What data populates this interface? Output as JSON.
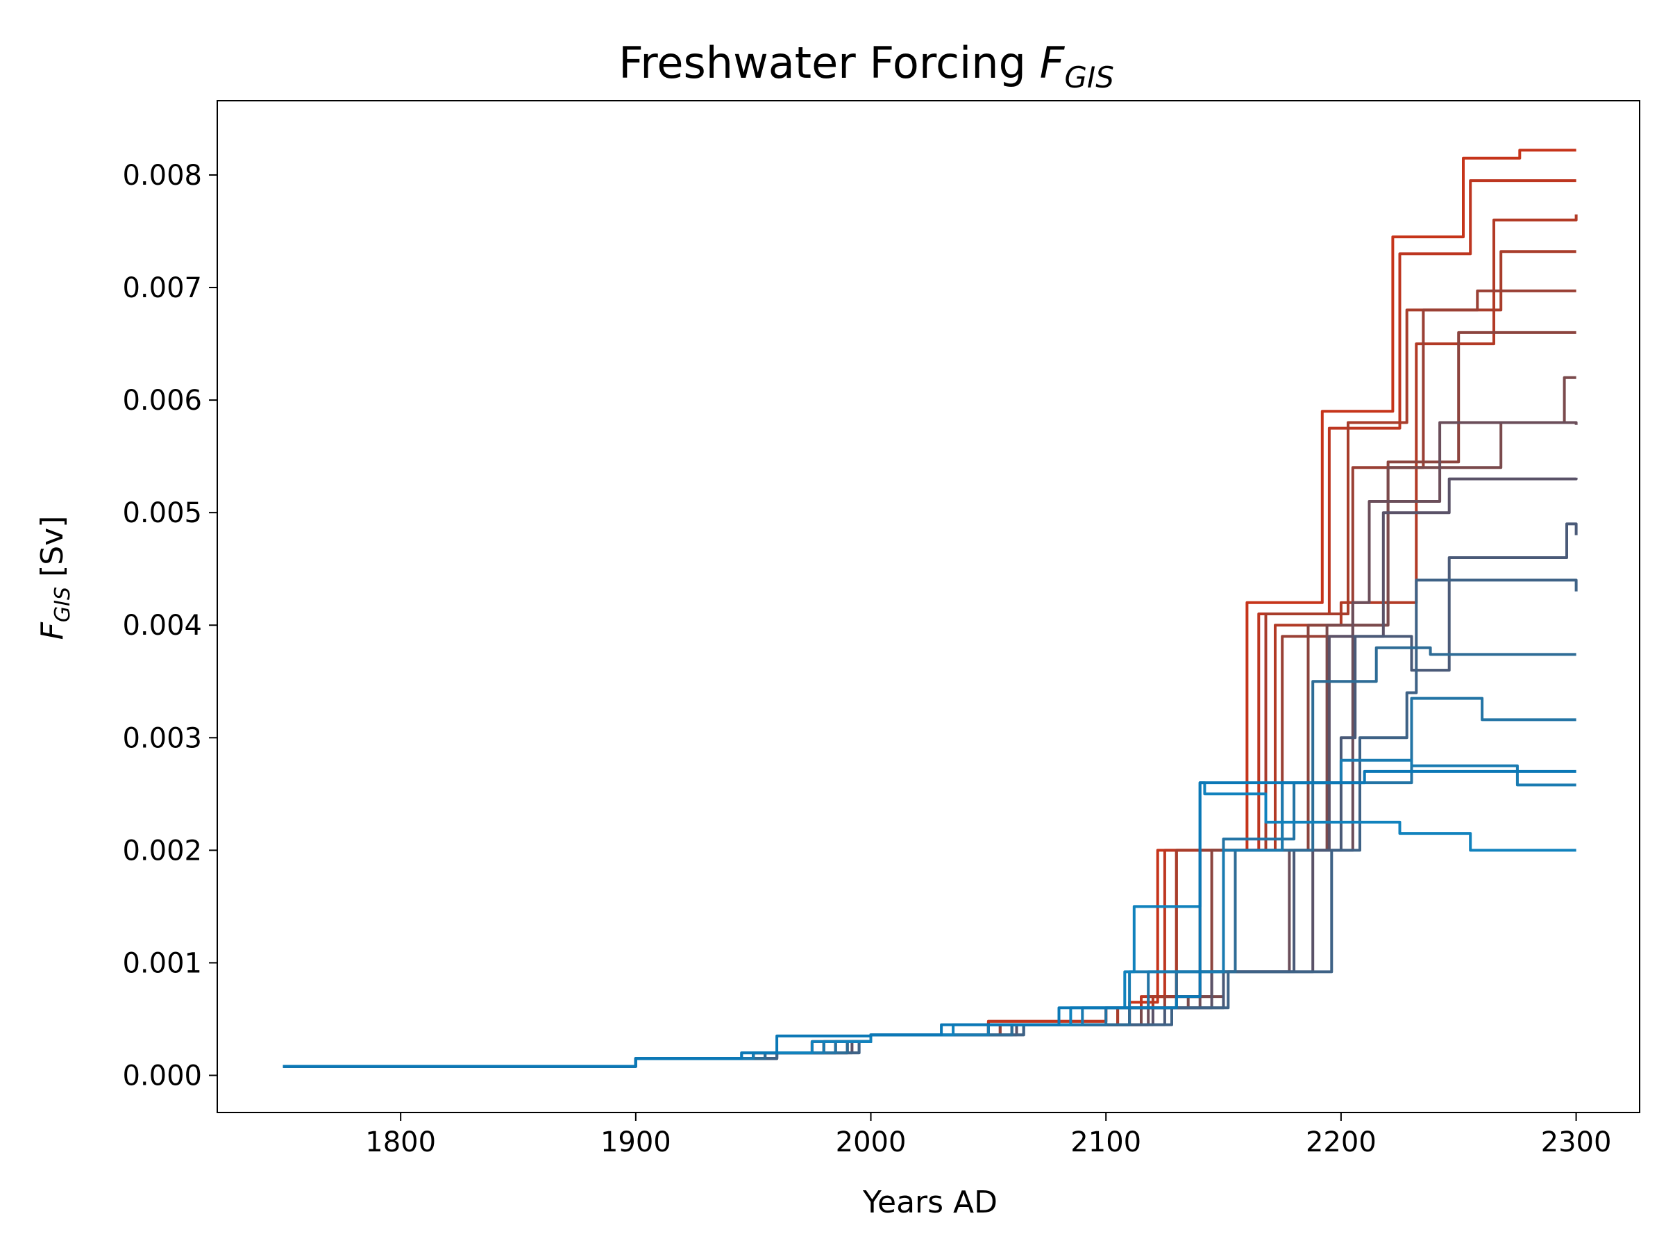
{
  "chart_data": {
    "type": "line",
    "title": {
      "main": "Freshwater Forcing ",
      "symbol": "F",
      "subscript": "GIS"
    },
    "xlabel": "Years AD",
    "ylabel": {
      "symbol": "F",
      "subscript": "GIS",
      "unit": " [Sv]"
    },
    "xlim": [
      1722,
      2327
    ],
    "ylim": [
      -0.00033,
      0.00866
    ],
    "xticks": [
      1800,
      1900,
      2000,
      2100,
      2200,
      2300
    ],
    "xtick_labels": [
      "1800",
      "1900",
      "2000",
      "2100",
      "2200",
      "2300"
    ],
    "yticks": [
      0.0,
      0.001,
      0.002,
      0.003,
      0.004,
      0.005,
      0.006,
      0.007,
      0.008
    ],
    "ytick_labels": [
      "0.000",
      "0.001",
      "0.002",
      "0.003",
      "0.004",
      "0.005",
      "0.006",
      "0.007",
      "0.008"
    ],
    "grid": false,
    "legend": "none",
    "series": [
      {
        "color": "#c6341a",
        "x": [
          1750,
          1900,
          1950,
          1975,
          2000,
          2050,
          2100,
          2110,
          2122,
          2124,
          2158,
          2160,
          2190,
          2192,
          2220,
          2222,
          2250,
          2252,
          2275,
          2276,
          2300
        ],
        "y": [
          8e-05,
          0.00015,
          0.0002,
          0.0003,
          0.00036,
          0.00048,
          0.0006,
          0.00065,
          0.002,
          0.002,
          0.002,
          0.0042,
          0.0042,
          0.0059,
          0.0059,
          0.00745,
          0.00745,
          0.00815,
          0.00815,
          0.00822,
          0.00822
        ]
      },
      {
        "color": "#bd3620",
        "x": [
          1750,
          1900,
          1950,
          1975,
          2000,
          2050,
          2100,
          2115,
          2125,
          2162,
          2165,
          2193,
          2195,
          2222,
          2225,
          2252,
          2255,
          2300
        ],
        "y": [
          8e-05,
          0.00015,
          0.0002,
          0.0003,
          0.00036,
          0.00048,
          0.0006,
          0.0007,
          0.002,
          0.002,
          0.0041,
          0.0041,
          0.00575,
          0.00575,
          0.0073,
          0.0073,
          0.00795,
          0.00795
        ]
      },
      {
        "color": "#b23a25",
        "x": [
          1750,
          1900,
          1950,
          1980,
          2000,
          2050,
          2105,
          2120,
          2130,
          2168,
          2172,
          2198,
          2200,
          2228,
          2232,
          2258,
          2265,
          2300
        ],
        "y": [
          8e-05,
          0.00015,
          0.0002,
          0.0003,
          0.00036,
          0.00045,
          0.0006,
          0.0007,
          0.002,
          0.002,
          0.004,
          0.004,
          0.0042,
          0.0042,
          0.0065,
          0.0065,
          0.0076,
          0.00765
        ]
      },
      {
        "color": "#a83d2b",
        "x": [
          1750,
          1900,
          1950,
          1980,
          2000,
          2050,
          2105,
          2118,
          2130,
          2165,
          2168,
          2200,
          2203,
          2225,
          2228,
          2262,
          2268,
          2300
        ],
        "y": [
          8e-05,
          0.00015,
          0.0002,
          0.0003,
          0.00036,
          0.00045,
          0.0006,
          0.0007,
          0.002,
          0.002,
          0.0041,
          0.0041,
          0.0058,
          0.0058,
          0.0068,
          0.0068,
          0.00732,
          0.00732
        ]
      },
      {
        "color": "#9a4035",
        "x": [
          1750,
          1900,
          1955,
          1985,
          2000,
          2055,
          2110,
          2125,
          2140,
          2170,
          2175,
          2200,
          2205,
          2230,
          2235,
          2252,
          2258,
          2300
        ],
        "y": [
          8e-05,
          0.00015,
          0.0002,
          0.0003,
          0.00036,
          0.00045,
          0.0006,
          0.0007,
          0.002,
          0.002,
          0.0039,
          0.0039,
          0.0054,
          0.0054,
          0.0068,
          0.0068,
          0.00697,
          0.00697
        ]
      },
      {
        "color": "#8c443e",
        "x": [
          1750,
          1900,
          1955,
          1985,
          2000,
          2055,
          2110,
          2130,
          2145,
          2180,
          2186,
          2215,
          2220,
          2240,
          2250,
          2300
        ],
        "y": [
          8e-05,
          0.00015,
          0.0002,
          0.0003,
          0.00036,
          0.00045,
          0.0006,
          0.0007,
          0.002,
          0.002,
          0.004,
          0.004,
          0.00545,
          0.00545,
          0.0066,
          0.0066
        ]
      },
      {
        "color": "#7a4a4c",
        "x": [
          1750,
          1900,
          1955,
          1990,
          2000,
          2060,
          2115,
          2135,
          2150,
          2188,
          2194,
          2215,
          2220,
          2260,
          2268,
          2295,
          2300
        ],
        "y": [
          8e-05,
          0.00015,
          0.0002,
          0.0003,
          0.00036,
          0.00045,
          0.0006,
          0.0007,
          0.002,
          0.002,
          0.004,
          0.004,
          0.0054,
          0.0054,
          0.0058,
          0.0062,
          0.0062
        ]
      },
      {
        "color": "#6b4e5a",
        "x": [
          1750,
          1900,
          1960,
          1990,
          2000,
          2060,
          2118,
          2140,
          2165,
          2178,
          2185,
          2205,
          2212,
          2232,
          2242,
          2255,
          2300
        ],
        "y": [
          8e-05,
          0.00015,
          0.0002,
          0.0003,
          0.00036,
          0.00045,
          0.0006,
          0.00092,
          0.00092,
          0.002,
          0.002,
          0.0042,
          0.0051,
          0.0051,
          0.0058,
          0.0058,
          0.00578
        ]
      },
      {
        "color": "#5a5268",
        "x": [
          1750,
          1900,
          1960,
          1992,
          2000,
          2062,
          2120,
          2145,
          2180,
          2188,
          2195,
          2212,
          2218,
          2240,
          2246,
          2300
        ],
        "y": [
          8e-05,
          0.00015,
          0.0002,
          0.0003,
          0.00036,
          0.00045,
          0.0006,
          0.00092,
          0.00092,
          0.002,
          0.0039,
          0.0039,
          0.005,
          0.005,
          0.0053,
          0.00531
        ]
      },
      {
        "color": "#4a5a78",
        "x": [
          1750,
          1900,
          1960,
          1995,
          2000,
          2065,
          2125,
          2150,
          2175,
          2180,
          2188,
          2200,
          2206,
          2224,
          2230,
          2240,
          2246,
          2290,
          2296,
          2300
        ],
        "y": [
          8e-05,
          0.00015,
          0.0002,
          0.0003,
          0.00036,
          0.00045,
          0.0006,
          0.00092,
          0.00092,
          0.002,
          0.002,
          0.003,
          0.0039,
          0.0039,
          0.0036,
          0.0036,
          0.0046,
          0.0046,
          0.0049,
          0.0048
        ]
      },
      {
        "color": "#3e6286",
        "x": [
          1750,
          1900,
          1960,
          1995,
          2000,
          2065,
          2128,
          2152,
          2190,
          2196,
          2205,
          2208,
          2218,
          2228,
          2232,
          2275,
          2295,
          2300
        ],
        "y": [
          8e-05,
          0.00015,
          0.0002,
          0.0003,
          0.00036,
          0.00045,
          0.0006,
          0.00092,
          0.00092,
          0.002,
          0.002,
          0.003,
          0.003,
          0.0034,
          0.0044,
          0.0044,
          0.0044,
          0.0043
        ]
      },
      {
        "color": "#2e6c96",
        "x": [
          1750,
          1900,
          1955,
          1990,
          2000,
          2060,
          2110,
          2130,
          2145,
          2155,
          2180,
          2188,
          2205,
          2215,
          2230,
          2238,
          2300
        ],
        "y": [
          8e-05,
          0.00015,
          0.0002,
          0.0003,
          0.00036,
          0.00045,
          0.0006,
          0.00092,
          0.00092,
          0.002,
          0.002,
          0.0035,
          0.0035,
          0.0038,
          0.0038,
          0.00374,
          0.00374
        ]
      },
      {
        "color": "#2374a5",
        "x": [
          1750,
          1900,
          1950,
          1985,
          2000,
          2050,
          2100,
          2118,
          2138,
          2150,
          2175,
          2180,
          2220,
          2230,
          2245,
          2260,
          2300
        ],
        "y": [
          8e-05,
          0.00015,
          0.0002,
          0.0003,
          0.00036,
          0.00045,
          0.0006,
          0.00092,
          0.00092,
          0.0021,
          0.0021,
          0.0026,
          0.0026,
          0.00335,
          0.00335,
          0.00316,
          0.00316
        ]
      },
      {
        "color": "#1a7bb1",
        "x": [
          1750,
          1900,
          1950,
          1980,
          2000,
          2050,
          2090,
          2110,
          2140,
          2150,
          2170,
          2175,
          2190,
          2200,
          2220,
          2230,
          2270,
          2275,
          2300
        ],
        "y": [
          8e-05,
          0.00015,
          0.0002,
          0.0003,
          0.00036,
          0.00045,
          0.0006,
          0.00092,
          0.00092,
          0.002,
          0.002,
          0.0026,
          0.0026,
          0.0028,
          0.0028,
          0.00275,
          0.00275,
          0.00258,
          0.00258
        ]
      },
      {
        "color": "#1182bd",
        "x": [
          1750,
          1900,
          1945,
          1975,
          2000,
          2035,
          2085,
          2108,
          2112,
          2128,
          2140,
          2142,
          2150,
          2168,
          2176,
          2205,
          2225,
          2245,
          2255,
          2300
        ],
        "y": [
          8e-05,
          0.00015,
          0.0002,
          0.0003,
          0.00036,
          0.00045,
          0.0006,
          0.00092,
          0.0015,
          0.0015,
          0.0026,
          0.0025,
          0.0025,
          0.00225,
          0.00225,
          0.00225,
          0.00215,
          0.00215,
          0.002,
          0.002
        ]
      },
      {
        "color": "#0b78b6",
        "x": [
          1750,
          1900,
          1945,
          1960,
          2000,
          2030,
          2080,
          2100,
          2130,
          2140,
          2160,
          2165,
          2200,
          2210,
          2220,
          2300
        ],
        "y": [
          8e-05,
          0.00015,
          0.0002,
          0.00035,
          0.00036,
          0.00045,
          0.0006,
          0.0006,
          0.0007,
          0.0026,
          0.0026,
          0.0026,
          0.0026,
          0.0027,
          0.0027,
          0.0027
        ]
      }
    ]
  }
}
